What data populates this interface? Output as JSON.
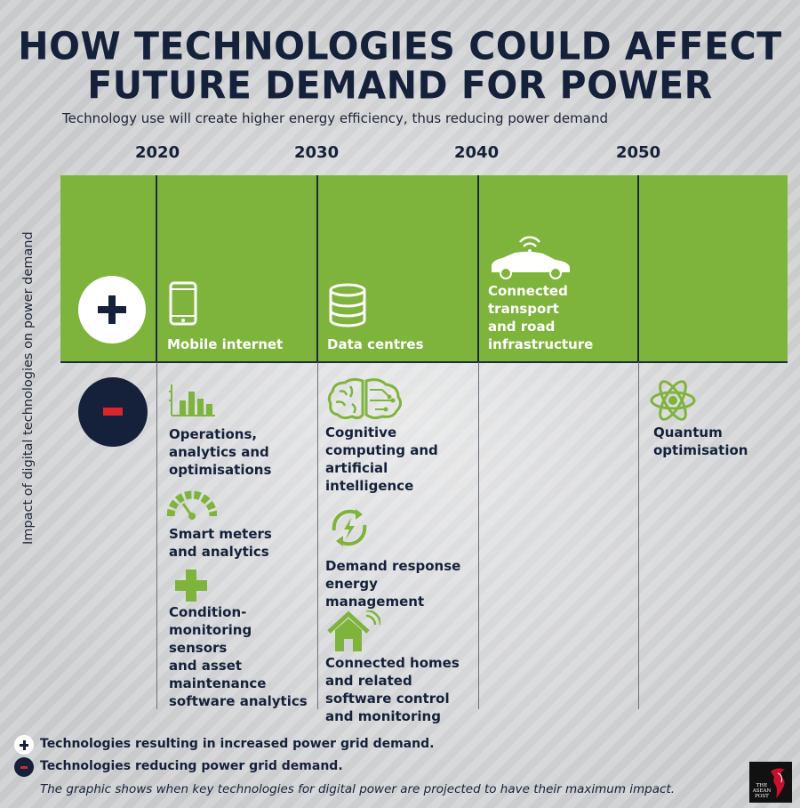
{
  "title_line1": "HOW TECHNOLOGIES COULD AFFECT",
  "title_line2": "FUTURE DEMAND FOR POWER",
  "subtitle": "Technology use will create higher energy efficiency, thus reducing power demand",
  "years": [
    "2020",
    "2030",
    "2040",
    "2050"
  ],
  "y_axis_label": "Impact of digital technologies on power demand",
  "increase": {
    "mobile_internet": "Mobile internet",
    "data_centres": "Data centres",
    "connected_transport": [
      "Connected",
      "transport",
      "and road",
      "infrastructure"
    ]
  },
  "reduce": {
    "col2020": {
      "operations": [
        "Operations,",
        "analytics and",
        "optimisations"
      ],
      "smart_meters": [
        "Smart meters",
        "and analytics"
      ],
      "condition": [
        "Condition-",
        "monitoring",
        "sensors",
        "and asset",
        "maintenance",
        "software analytics"
      ]
    },
    "col2030": {
      "cognitive": [
        "Cognitive",
        "computing and",
        "artificial",
        "intelligence"
      ],
      "demand_response": [
        "Demand response",
        "energy",
        "management"
      ],
      "connected_homes": [
        "Connected homes",
        "and related",
        "software control",
        "and monitoring"
      ]
    },
    "col2050": {
      "quantum": [
        "Quantum",
        "optimisation"
      ]
    }
  },
  "legend": {
    "increase_text": "Technologies resulting in increased power grid demand.",
    "reduce_text": "Technologies reducing power grid demand."
  },
  "footnote": "The graphic shows when key technologies for digital power are projected to have their maximum impact.",
  "logo": {
    "line1": "THE",
    "line2": "ASEAN",
    "line3": "POST"
  },
  "colors": {
    "navy": "#15213a",
    "green": "#7fb43c",
    "red": "#d8262d"
  },
  "icons": [
    "mobile-phone-icon",
    "database-icon",
    "connected-car-icon",
    "bar-chart-icon",
    "gauge-icon",
    "plus-cross-icon",
    "brain-circuit-icon",
    "recycle-lightning-icon",
    "smart-home-icon",
    "atom-icon"
  ]
}
